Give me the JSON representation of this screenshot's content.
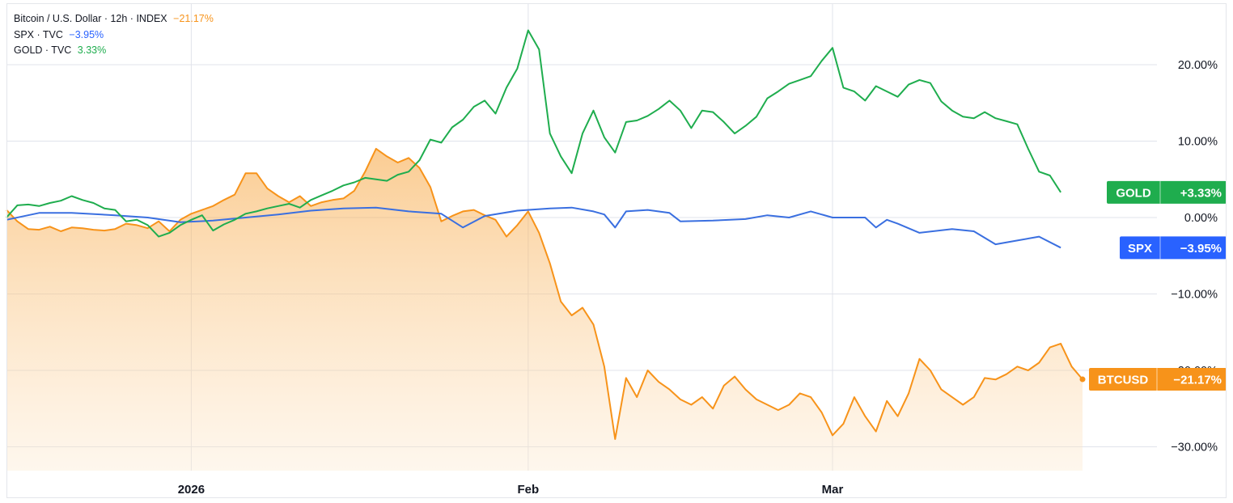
{
  "legend": [
    {
      "label": "Bitcoin / U.S. Dollar · 12h · INDEX",
      "value": "−21.17%",
      "color": "#f7931a"
    },
    {
      "label": "SPX · TVC",
      "value": "−3.95%",
      "color": "#2962ff"
    },
    {
      "label": "GOLD · TVC",
      "value": "3.33%",
      "color": "#1fad4e"
    }
  ],
  "chart_data": {
    "type": "line",
    "y_unit": "%",
    "ylim": [
      -32,
      29
    ],
    "y_ticks": [
      20,
      10,
      0,
      -10,
      -20,
      -30
    ],
    "y_tick_labels": [
      "20.00%",
      "10.00%",
      "0.00%",
      "−10.00%",
      "−20.00%",
      "−30.00%"
    ],
    "x_range": [
      "2025-12-15",
      "2026-03-24"
    ],
    "x_ticks": [
      {
        "date": "2026-01-01",
        "label": "2026"
      },
      {
        "date": "2026-02-01",
        "label": "Feb"
      },
      {
        "date": "2026-03-01",
        "label": "Mar"
      }
    ],
    "grid": true,
    "series": [
      {
        "name": "GOLD",
        "color": "#1fad4e",
        "badge": "GOLD",
        "badge_value": "+3.33%",
        "points": [
          [
            "2025-12-15",
            0.0
          ],
          [
            "2025-12-16",
            1.6
          ],
          [
            "2025-12-17",
            1.7
          ],
          [
            "2025-12-18",
            1.5
          ],
          [
            "2025-12-19",
            1.9
          ],
          [
            "2025-12-20",
            2.2
          ],
          [
            "2025-12-21",
            2.8
          ],
          [
            "2025-12-22",
            2.3
          ],
          [
            "2025-12-23",
            1.9
          ],
          [
            "2025-12-24",
            1.2
          ],
          [
            "2025-12-25",
            1.0
          ],
          [
            "2025-12-26",
            -0.5
          ],
          [
            "2025-12-27",
            -0.3
          ],
          [
            "2025-12-28",
            -1.0
          ],
          [
            "2025-12-29",
            -2.5
          ],
          [
            "2025-12-30",
            -2.0
          ],
          [
            "2025-12-31",
            -1.0
          ],
          [
            "2026-01-01",
            -0.3
          ],
          [
            "2026-01-02",
            0.3
          ],
          [
            "2026-01-03",
            -1.7
          ],
          [
            "2026-01-04",
            -0.9
          ],
          [
            "2026-01-05",
            -0.3
          ],
          [
            "2026-01-06",
            0.5
          ],
          [
            "2026-01-07",
            0.8
          ],
          [
            "2026-01-08",
            1.2
          ],
          [
            "2026-01-09",
            1.5
          ],
          [
            "2026-01-10",
            1.8
          ],
          [
            "2026-01-11",
            1.3
          ],
          [
            "2026-01-12",
            2.3
          ],
          [
            "2026-01-13",
            2.9
          ],
          [
            "2026-01-14",
            3.5
          ],
          [
            "2026-01-15",
            4.2
          ],
          [
            "2026-01-16",
            4.6
          ],
          [
            "2026-01-17",
            5.2
          ],
          [
            "2026-01-18",
            5.0
          ],
          [
            "2026-01-19",
            4.8
          ],
          [
            "2026-01-20",
            5.6
          ],
          [
            "2026-01-21",
            6.0
          ],
          [
            "2026-01-22",
            7.5
          ],
          [
            "2026-01-23",
            10.2
          ],
          [
            "2026-01-24",
            9.8
          ],
          [
            "2026-01-25",
            11.8
          ],
          [
            "2026-01-26",
            12.8
          ],
          [
            "2026-01-27",
            14.5
          ],
          [
            "2026-01-28",
            15.3
          ],
          [
            "2026-01-29",
            13.6
          ],
          [
            "2026-01-30",
            17.0
          ],
          [
            "2026-01-31",
            19.5
          ],
          [
            "2026-02-01",
            24.5
          ],
          [
            "2026-02-02",
            22.0
          ],
          [
            "2026-02-03",
            11.0
          ],
          [
            "2026-02-04",
            8.0
          ],
          [
            "2026-02-05",
            5.8
          ],
          [
            "2026-02-06",
            11.0
          ],
          [
            "2026-02-07",
            14.0
          ],
          [
            "2026-02-08",
            10.5
          ],
          [
            "2026-02-09",
            8.5
          ],
          [
            "2026-02-10",
            12.5
          ],
          [
            "2026-02-11",
            12.7
          ],
          [
            "2026-02-12",
            13.3
          ],
          [
            "2026-02-13",
            14.2
          ],
          [
            "2026-02-14",
            15.3
          ],
          [
            "2026-02-15",
            14.0
          ],
          [
            "2026-02-16",
            11.7
          ],
          [
            "2026-02-17",
            14.0
          ],
          [
            "2026-02-18",
            13.8
          ],
          [
            "2026-02-19",
            12.5
          ],
          [
            "2026-02-20",
            11.0
          ],
          [
            "2026-02-21",
            12.0
          ],
          [
            "2026-02-22",
            13.2
          ],
          [
            "2026-02-23",
            15.6
          ],
          [
            "2026-02-24",
            16.5
          ],
          [
            "2026-02-25",
            17.5
          ],
          [
            "2026-02-26",
            18.0
          ],
          [
            "2026-02-27",
            18.5
          ],
          [
            "2026-02-28",
            20.5
          ],
          [
            "2026-03-01",
            22.2
          ],
          [
            "2026-03-02",
            17.0
          ],
          [
            "2026-03-03",
            16.5
          ],
          [
            "2026-03-04",
            15.3
          ],
          [
            "2026-03-05",
            17.2
          ],
          [
            "2026-03-06",
            16.5
          ],
          [
            "2026-03-07",
            15.8
          ],
          [
            "2026-03-08",
            17.4
          ],
          [
            "2026-03-09",
            18.0
          ],
          [
            "2026-03-10",
            17.6
          ],
          [
            "2026-03-11",
            15.2
          ],
          [
            "2026-03-12",
            14.0
          ],
          [
            "2026-03-13",
            13.2
          ],
          [
            "2026-03-14",
            13.0
          ],
          [
            "2026-03-15",
            13.8
          ],
          [
            "2026-03-16",
            13.0
          ],
          [
            "2026-03-17",
            12.6
          ],
          [
            "2026-03-18",
            12.2
          ],
          [
            "2026-03-19",
            9.0
          ],
          [
            "2026-03-20",
            6.0
          ],
          [
            "2026-03-21",
            5.5
          ],
          [
            "2026-03-22",
            3.3
          ]
        ]
      },
      {
        "name": "SPX",
        "color": "#3a6fe0",
        "badge": "SPX",
        "badge_value": "−3.95%",
        "points": [
          [
            "2025-12-15",
            -0.3
          ],
          [
            "2025-12-18",
            0.6
          ],
          [
            "2025-12-21",
            0.6
          ],
          [
            "2025-12-25",
            0.3
          ],
          [
            "2025-12-28",
            0.0
          ],
          [
            "2025-12-31",
            -0.6
          ],
          [
            "2026-01-03",
            -0.4
          ],
          [
            "2026-01-06",
            0.0
          ],
          [
            "2026-01-09",
            0.4
          ],
          [
            "2026-01-12",
            0.9
          ],
          [
            "2026-01-15",
            1.2
          ],
          [
            "2026-01-18",
            1.3
          ],
          [
            "2026-01-21",
            0.8
          ],
          [
            "2026-01-24",
            0.5
          ],
          [
            "2026-01-26",
            -1.3
          ],
          [
            "2026-01-28",
            0.2
          ],
          [
            "2026-01-31",
            0.9
          ],
          [
            "2026-02-03",
            1.2
          ],
          [
            "2026-02-05",
            1.3
          ],
          [
            "2026-02-07",
            0.8
          ],
          [
            "2026-02-08",
            0.4
          ],
          [
            "2026-02-09",
            -1.3
          ],
          [
            "2026-02-10",
            0.8
          ],
          [
            "2026-02-12",
            1.0
          ],
          [
            "2026-02-14",
            0.6
          ],
          [
            "2026-02-15",
            -0.5
          ],
          [
            "2026-02-18",
            -0.4
          ],
          [
            "2026-02-21",
            -0.2
          ],
          [
            "2026-02-23",
            0.3
          ],
          [
            "2026-02-25",
            0.0
          ],
          [
            "2026-02-27",
            0.8
          ],
          [
            "2026-03-01",
            0.0
          ],
          [
            "2026-03-04",
            0.0
          ],
          [
            "2026-03-05",
            -1.3
          ],
          [
            "2026-03-06",
            -0.3
          ],
          [
            "2026-03-07",
            -0.8
          ],
          [
            "2026-03-09",
            -2.0
          ],
          [
            "2026-03-12",
            -1.5
          ],
          [
            "2026-03-14",
            -1.8
          ],
          [
            "2026-03-16",
            -3.5
          ],
          [
            "2026-03-18",
            -3.0
          ],
          [
            "2026-03-20",
            -2.5
          ],
          [
            "2026-03-22",
            -3.95
          ]
        ]
      },
      {
        "name": "BTCUSD",
        "color": "#f7931a",
        "badge": "BTCUSD",
        "badge_value": "−21.17%",
        "points": [
          [
            "2025-12-15",
            1.0
          ],
          [
            "2025-12-16",
            -0.5
          ],
          [
            "2025-12-17",
            -1.5
          ],
          [
            "2025-12-18",
            -1.6
          ],
          [
            "2025-12-19",
            -1.2
          ],
          [
            "2025-12-20",
            -1.8
          ],
          [
            "2025-12-21",
            -1.3
          ],
          [
            "2025-12-22",
            -1.4
          ],
          [
            "2025-12-23",
            -1.6
          ],
          [
            "2025-12-24",
            -1.7
          ],
          [
            "2025-12-25",
            -1.5
          ],
          [
            "2025-12-26",
            -0.8
          ],
          [
            "2025-12-27",
            -1.0
          ],
          [
            "2025-12-28",
            -1.4
          ],
          [
            "2025-12-29",
            -0.5
          ],
          [
            "2025-12-30",
            -1.8
          ],
          [
            "2025-12-31",
            -0.3
          ],
          [
            "2026-01-01",
            0.5
          ],
          [
            "2026-01-02",
            1.0
          ],
          [
            "2026-01-03",
            1.5
          ],
          [
            "2026-01-04",
            2.3
          ],
          [
            "2026-01-05",
            3.0
          ],
          [
            "2026-01-06",
            5.8
          ],
          [
            "2026-01-07",
            5.8
          ],
          [
            "2026-01-08",
            3.8
          ],
          [
            "2026-01-09",
            2.8
          ],
          [
            "2026-01-10",
            2.0
          ],
          [
            "2026-01-11",
            2.8
          ],
          [
            "2026-01-12",
            1.5
          ],
          [
            "2026-01-13",
            2.0
          ],
          [
            "2026-01-14",
            2.3
          ],
          [
            "2026-01-15",
            2.5
          ],
          [
            "2026-01-16",
            3.5
          ],
          [
            "2026-01-17",
            6.0
          ],
          [
            "2026-01-18",
            9.0
          ],
          [
            "2026-01-19",
            8.0
          ],
          [
            "2026-01-20",
            7.2
          ],
          [
            "2026-01-21",
            7.8
          ],
          [
            "2026-01-22",
            6.5
          ],
          [
            "2026-01-23",
            4.0
          ],
          [
            "2026-01-24",
            -0.5
          ],
          [
            "2026-01-25",
            0.2
          ],
          [
            "2026-01-26",
            0.8
          ],
          [
            "2026-01-27",
            1.0
          ],
          [
            "2026-01-28",
            0.3
          ],
          [
            "2026-01-29",
            -0.3
          ],
          [
            "2026-01-30",
            -2.5
          ],
          [
            "2026-01-31",
            -1.0
          ],
          [
            "2026-02-01",
            0.8
          ],
          [
            "2026-02-02",
            -2.0
          ],
          [
            "2026-02-03",
            -6.0
          ],
          [
            "2026-02-04",
            -11.0
          ],
          [
            "2026-02-05",
            -12.8
          ],
          [
            "2026-02-06",
            -11.8
          ],
          [
            "2026-02-07",
            -14.0
          ],
          [
            "2026-02-08",
            -19.5
          ],
          [
            "2026-02-09",
            -29.0
          ],
          [
            "2026-02-10",
            -21.0
          ],
          [
            "2026-02-11",
            -23.5
          ],
          [
            "2026-02-12",
            -20.0
          ],
          [
            "2026-02-13",
            -21.5
          ],
          [
            "2026-02-14",
            -22.5
          ],
          [
            "2026-02-15",
            -23.8
          ],
          [
            "2026-02-16",
            -24.5
          ],
          [
            "2026-02-17",
            -23.5
          ],
          [
            "2026-02-18",
            -25.0
          ],
          [
            "2026-02-19",
            -22.0
          ],
          [
            "2026-02-20",
            -20.8
          ],
          [
            "2026-02-21",
            -22.5
          ],
          [
            "2026-02-22",
            -23.8
          ],
          [
            "2026-02-23",
            -24.5
          ],
          [
            "2026-02-24",
            -25.2
          ],
          [
            "2026-02-25",
            -24.5
          ],
          [
            "2026-02-26",
            -23.0
          ],
          [
            "2026-02-27",
            -23.5
          ],
          [
            "2026-02-28",
            -25.5
          ],
          [
            "2026-03-01",
            -28.5
          ],
          [
            "2026-03-02",
            -27.0
          ],
          [
            "2026-03-03",
            -23.5
          ],
          [
            "2026-03-04",
            -26.0
          ],
          [
            "2026-03-05",
            -28.0
          ],
          [
            "2026-03-06",
            -24.0
          ],
          [
            "2026-03-07",
            -26.0
          ],
          [
            "2026-03-08",
            -23.0
          ],
          [
            "2026-03-09",
            -18.5
          ],
          [
            "2026-03-10",
            -20.0
          ],
          [
            "2026-03-11",
            -22.5
          ],
          [
            "2026-03-12",
            -23.5
          ],
          [
            "2026-03-13",
            -24.5
          ],
          [
            "2026-03-14",
            -23.5
          ],
          [
            "2026-03-15",
            -21.0
          ],
          [
            "2026-03-16",
            -21.2
          ],
          [
            "2026-03-17",
            -20.5
          ],
          [
            "2026-03-18",
            -19.5
          ],
          [
            "2026-03-19",
            -20.0
          ],
          [
            "2026-03-20",
            -19.0
          ],
          [
            "2026-03-21",
            -17.0
          ],
          [
            "2026-03-22",
            -16.5
          ],
          [
            "2026-03-23",
            -19.5
          ],
          [
            "2026-03-24",
            -21.17
          ]
        ]
      }
    ]
  }
}
